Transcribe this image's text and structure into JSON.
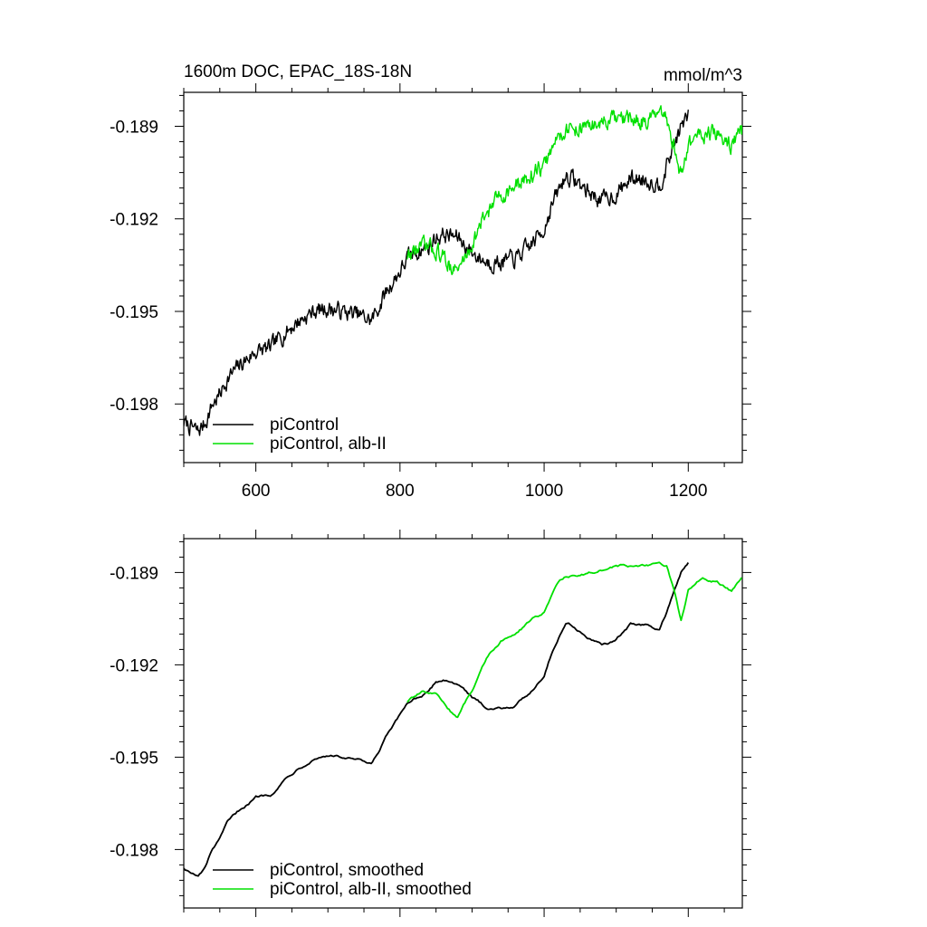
{
  "figure": {
    "title_left": "1600m DOC, EPAC_18S-18N",
    "title_right": "mmol/m^3"
  },
  "colors": {
    "control": "#000000",
    "alb": "#00e000"
  },
  "chart_data": [
    {
      "type": "line",
      "panel": "top",
      "xlim": [
        500,
        1275
      ],
      "ylim": [
        -0.1999,
        -0.1879
      ],
      "x_ticks": [
        600,
        800,
        1000,
        1200
      ],
      "x_tick_labels": [
        "600",
        "800",
        "1000",
        "1200"
      ],
      "y_ticks": [
        -0.198,
        -0.195,
        -0.192,
        -0.189
      ],
      "y_tick_labels": [
        "-0.198",
        "-0.195",
        "-0.192",
        "-0.189"
      ],
      "legend_position": "bottom-left",
      "grid": false,
      "series": [
        {
          "name": "piControl",
          "color": "#000000",
          "noisy": true,
          "x": [
            500,
            520,
            530,
            540,
            550,
            560,
            580,
            600,
            620,
            640,
            660,
            680,
            700,
            720,
            740,
            760,
            770,
            780,
            800,
            810,
            820,
            840,
            850,
            860,
            880,
            900,
            920,
            940,
            960,
            980,
            1000,
            1010,
            1020,
            1030,
            1040,
            1060,
            1080,
            1100,
            1120,
            1140,
            1160,
            1170,
            1180,
            1190,
            1200
          ],
          "y": [
            -0.1986,
            -0.1989,
            -0.1986,
            -0.198,
            -0.1977,
            -0.1972,
            -0.1967,
            -0.1963,
            -0.1962,
            -0.1957,
            -0.1953,
            -0.195,
            -0.1949,
            -0.195,
            -0.1951,
            -0.1953,
            -0.1949,
            -0.1944,
            -0.1937,
            -0.1933,
            -0.1931,
            -0.1929,
            -0.1926,
            -0.1925,
            -0.1926,
            -0.1931,
            -0.1934,
            -0.1934,
            -0.1933,
            -0.1929,
            -0.1923,
            -0.1916,
            -0.1911,
            -0.1906,
            -0.1907,
            -0.1911,
            -0.1914,
            -0.1912,
            -0.1907,
            -0.1907,
            -0.1909,
            -0.1903,
            -0.1896,
            -0.189,
            -0.1887
          ]
        },
        {
          "name": "piControl, alb-II",
          "color": "#00e000",
          "noisy": true,
          "x": [
            810,
            830,
            850,
            870,
            880,
            900,
            920,
            940,
            960,
            980,
            1000,
            1010,
            1020,
            1030,
            1040,
            1060,
            1080,
            1100,
            1120,
            1140,
            1160,
            1170,
            1180,
            1190,
            1200,
            1220,
            1240,
            1260,
            1275
          ],
          "y": [
            -0.1932,
            -0.1929,
            -0.193,
            -0.1935,
            -0.1937,
            -0.1928,
            -0.1918,
            -0.1912,
            -0.191,
            -0.1906,
            -0.1903,
            -0.1898,
            -0.1893,
            -0.1891,
            -0.1891,
            -0.189,
            -0.1889,
            -0.1888,
            -0.1888,
            -0.1888,
            -0.1887,
            -0.1888,
            -0.1896,
            -0.1906,
            -0.1896,
            -0.1892,
            -0.1893,
            -0.1896,
            -0.1891
          ]
        }
      ]
    },
    {
      "type": "line",
      "panel": "bottom",
      "xlim": [
        500,
        1275
      ],
      "ylim": [
        -0.1999,
        -0.1879
      ],
      "x_ticks": [
        600,
        800,
        1000,
        1200
      ],
      "x_tick_labels": [
        "",
        "",
        "",
        ""
      ],
      "y_ticks": [
        -0.198,
        -0.195,
        -0.192,
        -0.189
      ],
      "y_tick_labels": [
        "-0.198",
        "-0.195",
        "-0.192",
        "-0.189"
      ],
      "legend_position": "bottom-left",
      "grid": false,
      "series": [
        {
          "name": "piControl, smoothed",
          "color": "#000000",
          "noisy": false,
          "x": [
            500,
            520,
            530,
            540,
            550,
            560,
            580,
            600,
            620,
            640,
            660,
            680,
            700,
            720,
            740,
            760,
            770,
            780,
            800,
            810,
            820,
            840,
            850,
            860,
            880,
            900,
            920,
            940,
            960,
            980,
            1000,
            1010,
            1020,
            1030,
            1040,
            1060,
            1080,
            1100,
            1120,
            1140,
            1160,
            1170,
            1180,
            1190,
            1200
          ],
          "y": [
            -0.1986,
            -0.1989,
            -0.1986,
            -0.198,
            -0.1977,
            -0.1972,
            -0.1967,
            -0.1963,
            -0.1962,
            -0.1957,
            -0.1953,
            -0.195,
            -0.1949,
            -0.195,
            -0.1951,
            -0.1953,
            -0.1949,
            -0.1944,
            -0.1937,
            -0.1933,
            -0.1931,
            -0.1929,
            -0.1926,
            -0.1925,
            -0.1926,
            -0.1931,
            -0.1934,
            -0.1934,
            -0.1933,
            -0.1929,
            -0.1923,
            -0.1916,
            -0.1911,
            -0.1906,
            -0.1907,
            -0.1911,
            -0.1914,
            -0.1912,
            -0.1907,
            -0.1907,
            -0.1909,
            -0.1903,
            -0.1896,
            -0.189,
            -0.1887
          ]
        },
        {
          "name": "piControl, alb-II, smoothed",
          "color": "#00e000",
          "noisy": false,
          "x": [
            810,
            830,
            850,
            870,
            880,
            900,
            920,
            940,
            960,
            980,
            1000,
            1010,
            1020,
            1030,
            1040,
            1060,
            1080,
            1100,
            1120,
            1140,
            1160,
            1170,
            1180,
            1190,
            1200,
            1220,
            1240,
            1260,
            1275
          ],
          "y": [
            -0.1932,
            -0.1929,
            -0.193,
            -0.1935,
            -0.1937,
            -0.1928,
            -0.1918,
            -0.1912,
            -0.191,
            -0.1906,
            -0.1903,
            -0.1898,
            -0.1893,
            -0.1891,
            -0.1891,
            -0.189,
            -0.1889,
            -0.1888,
            -0.1888,
            -0.1888,
            -0.1887,
            -0.1888,
            -0.1896,
            -0.1906,
            -0.1896,
            -0.1892,
            -0.1893,
            -0.1896,
            -0.1891
          ]
        }
      ]
    }
  ]
}
